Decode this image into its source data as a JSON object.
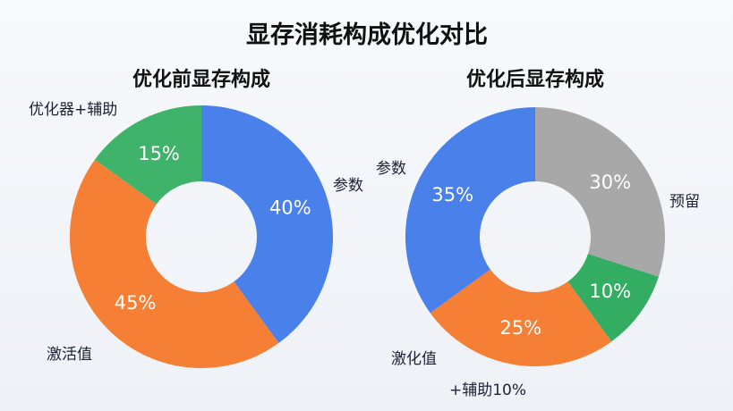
{
  "chart_data": [
    {
      "type": "pie",
      "donut": true,
      "title": "优化前显存构成",
      "slices": [
        {
          "label": "参数",
          "value": 40,
          "value_label": "40%",
          "color": "#4a80ea"
        },
        {
          "label": "激活值",
          "value": 45,
          "value_label": "45%",
          "color": "#f47f35"
        },
        {
          "label": "优化器+辅助",
          "value": 15,
          "value_label": "15%",
          "color": "#3fb36a"
        }
      ]
    },
    {
      "type": "pie",
      "donut": true,
      "title": "优化后显存构成",
      "slices": [
        {
          "label": "预留",
          "value": 30,
          "value_label": "30%",
          "color": "#a8a8a8"
        },
        {
          "label": "+辅助10%",
          "value": 10,
          "value_label": "10%",
          "color": "#33ad62"
        },
        {
          "label": "激化值",
          "value": 25,
          "value_label": "25%",
          "color": "#f47f35"
        },
        {
          "label": "参数",
          "value": 35,
          "value_label": "35%",
          "color": "#4a80ea"
        }
      ]
    }
  ],
  "title": "显存消耗构成优化对比"
}
